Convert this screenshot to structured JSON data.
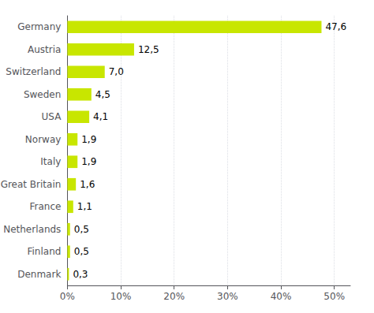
{
  "chart_data": {
    "type": "bar",
    "orientation": "horizontal",
    "categories": [
      "Germany",
      "Austria",
      "Switzerland",
      "Sweden",
      "USA",
      "Norway",
      "Italy",
      "Great Britain",
      "France",
      "Netherlands",
      "Finland",
      "Denmark"
    ],
    "values": [
      47.6,
      12.5,
      7.0,
      4.5,
      4.1,
      1.9,
      1.9,
      1.6,
      1.1,
      0.5,
      0.5,
      0.3
    ],
    "value_labels": [
      "47,6",
      "12,5",
      "7,0",
      "4,5",
      "4,1",
      "1,9",
      "1,9",
      "1,6",
      "1,1",
      "0,5",
      "0,5",
      "0,3"
    ],
    "color": "#c8e600",
    "xlim": [
      0,
      53
    ],
    "xticks": [
      {
        "value": 0,
        "label": "0%"
      },
      {
        "value": 10,
        "label": "10%"
      },
      {
        "value": 20,
        "label": "20%"
      },
      {
        "value": 30,
        "label": "30%"
      },
      {
        "value": 40,
        "label": "40%"
      },
      {
        "value": 50,
        "label": "50%"
      }
    ],
    "grid": true,
    "data_labels": true
  }
}
